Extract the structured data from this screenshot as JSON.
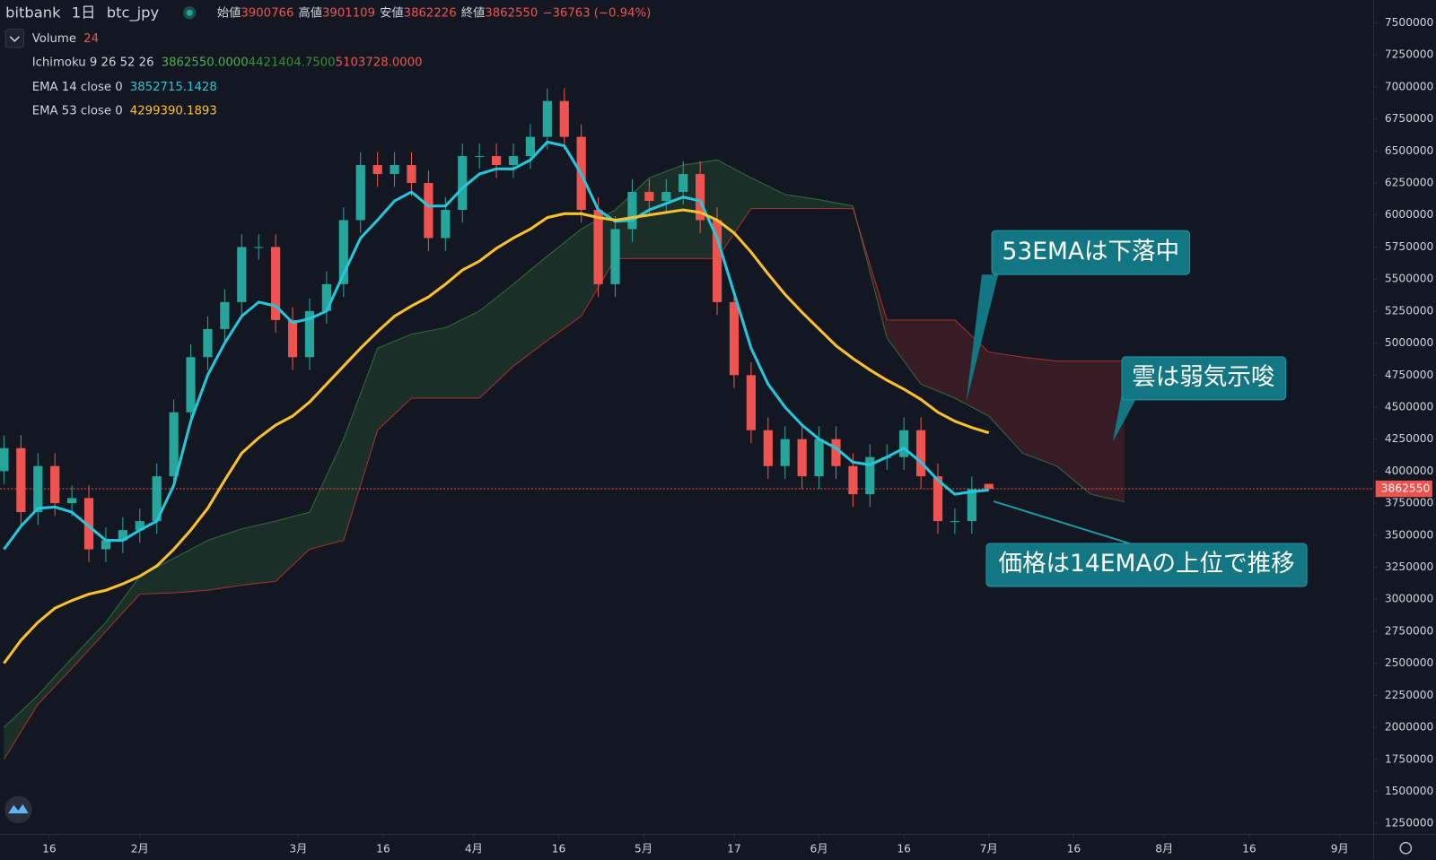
{
  "chart_data": {
    "type": "candlestick",
    "header": {
      "symbol": "bitbank",
      "interval": "1日",
      "pair": "btc_jpy",
      "open_label": "始値",
      "high_label": "高値",
      "low_label": "安値",
      "close_label": "終値",
      "change": {
        "value": -36763,
        "label": "−36763"
      },
      "change_pct": {
        "value": -0.94,
        "label": "(−0.94%)"
      }
    },
    "volume": {
      "name": "Volume",
      "length": 24
    },
    "ichimoku": {
      "name": "Ichimoku 9 26 52 26",
      "values": [
        {
          "value": 3862550,
          "label": "3862550.0000"
        },
        {
          "value": 4421404.75,
          "label": "4421404.7500"
        },
        {
          "value": 5103728,
          "label": "5103728.0000"
        }
      ],
      "colors": [
        "#4caf50",
        "#388e3c",
        "#ef5350"
      ]
    },
    "up_color": "#26a69a",
    "down_color": "#ef5350",
    "x": [
      7,
      10,
      13,
      16,
      19,
      22,
      25,
      28,
      31,
      34,
      37,
      40,
      43,
      46,
      49,
      52,
      55,
      58,
      61,
      64,
      67,
      70,
      73,
      76,
      79,
      82,
      85,
      88,
      91,
      94,
      97,
      100,
      103,
      106,
      109,
      112,
      115,
      118,
      121,
      124,
      127,
      130,
      133,
      136,
      139,
      142,
      145,
      148,
      151,
      154,
      157,
      160,
      163,
      166,
      169,
      172,
      175,
      178,
      181
    ],
    "open": [
      4000000,
      4180000,
      3680000,
      4040000,
      3750000,
      3790000,
      3390000,
      3460000,
      3540000,
      3610000,
      3960000,
      4460000,
      4890000,
      5110000,
      5320000,
      5750000,
      5750000,
      5180000,
      4890000,
      5250000,
      5460000,
      5960000,
      6390000,
      6320000,
      6390000,
      6250000,
      5820000,
      6040000,
      6460000,
      6460000,
      6390000,
      6460000,
      6610000,
      6890000,
      6610000,
      6040000,
      5460000,
      5890000,
      6180000,
      6110000,
      6180000,
      6320000,
      5960000,
      5320000,
      4750000,
      4320000,
      4040000,
      4250000,
      3960000,
      4250000,
      4040000,
      3820000,
      4110000,
      4110000,
      4320000,
      3960000,
      3610000,
      3610000,
      3900766
    ],
    "high": [
      4280000,
      4280000,
      4140000,
      4140000,
      3890000,
      3890000,
      3560000,
      3640000,
      3710000,
      4060000,
      4560000,
      4990000,
      5210000,
      5420000,
      5850000,
      5850000,
      5850000,
      5280000,
      5350000,
      5560000,
      6060000,
      6490000,
      6490000,
      6490000,
      6490000,
      6350000,
      6140000,
      6560000,
      6560000,
      6560000,
      6560000,
      6710000,
      6990000,
      6990000,
      6710000,
      6140000,
      5990000,
      6280000,
      6280000,
      6280000,
      6420000,
      6420000,
      6060000,
      5420000,
      4850000,
      4420000,
      4350000,
      4350000,
      4350000,
      4350000,
      4140000,
      4210000,
      4210000,
      4420000,
      4420000,
      4060000,
      3710000,
      3960000,
      3901109
    ],
    "low": [
      3900000,
      3580000,
      3580000,
      3650000,
      3650000,
      3290000,
      3290000,
      3360000,
      3440000,
      3510000,
      3860000,
      4360000,
      4790000,
      5010000,
      5220000,
      5650000,
      5080000,
      4790000,
      4790000,
      5150000,
      5360000,
      5860000,
      6220000,
      6220000,
      6150000,
      5720000,
      5720000,
      5940000,
      6360000,
      6290000,
      6290000,
      6360000,
      6510000,
      6510000,
      5940000,
      5360000,
      5360000,
      5790000,
      6010000,
      6010000,
      6080000,
      5860000,
      5220000,
      4650000,
      4220000,
      3940000,
      3940000,
      3860000,
      3860000,
      3940000,
      3720000,
      3720000,
      4010000,
      4010000,
      3860000,
      3510000,
      3510000,
      3510000,
      3862226
    ],
    "close": [
      4180000,
      3680000,
      4040000,
      3750000,
      3790000,
      3390000,
      3460000,
      3540000,
      3610000,
      3960000,
      4460000,
      4890000,
      5110000,
      5320000,
      5750000,
      5750000,
      5180000,
      4890000,
      5250000,
      5460000,
      5960000,
      6390000,
      6320000,
      6390000,
      6250000,
      5820000,
      6040000,
      6460000,
      6460000,
      6390000,
      6460000,
      6610000,
      6890000,
      6610000,
      6040000,
      5460000,
      5890000,
      6180000,
      6110000,
      6180000,
      6320000,
      5960000,
      5320000,
      4750000,
      4320000,
      4040000,
      4250000,
      3960000,
      4250000,
      4040000,
      3820000,
      4110000,
      4110000,
      4320000,
      3960000,
      3610000,
      3610000,
      3860000,
      3862550
    ],
    "lines": [
      {
        "name": "EMA 14 close 0",
        "color": "#26c6da",
        "values": [
          3390000,
          3570000,
          3710000,
          3720000,
          3680000,
          3570000,
          3460000,
          3460000,
          3540000,
          3610000,
          3890000,
          4390000,
          4750000,
          5000000,
          5210000,
          5320000,
          5290000,
          5160000,
          5190000,
          5250000,
          5540000,
          5820000,
          5960000,
          6110000,
          6180000,
          6070000,
          6070000,
          6210000,
          6320000,
          6360000,
          6360000,
          6430000,
          6570000,
          6540000,
          6320000,
          6040000,
          5950000,
          5960000,
          6040000,
          6090000,
          6140000,
          6110000,
          5820000,
          5390000,
          4960000,
          4680000,
          4500000,
          4360000,
          4250000,
          4180000,
          4070000,
          4050000,
          4110000,
          4180000,
          4070000,
          3930000,
          3820000,
          3840000,
          3852715.1428
        ]
      },
      {
        "name": "EMA 53 close 0",
        "color": "#fbc02d",
        "values": [
          2500000,
          2680000,
          2820000,
          2930000,
          2990000,
          3040000,
          3070000,
          3120000,
          3180000,
          3260000,
          3390000,
          3540000,
          3710000,
          3930000,
          4140000,
          4260000,
          4360000,
          4430000,
          4540000,
          4680000,
          4820000,
          4960000,
          5090000,
          5210000,
          5290000,
          5360000,
          5460000,
          5570000,
          5640000,
          5740000,
          5820000,
          5890000,
          5980000,
          6010000,
          6010000,
          5980000,
          5960000,
          5980000,
          6000000,
          6020000,
          6040000,
          6020000,
          5960000,
          5860000,
          5710000,
          5540000,
          5380000,
          5240000,
          5110000,
          4980000,
          4880000,
          4790000,
          4710000,
          4640000,
          4560000,
          4460000,
          4390000,
          4340000,
          4299390.1893
        ]
      }
    ],
    "cloud": {
      "x": [
        7,
        13,
        19,
        25,
        31,
        37,
        43,
        49,
        55,
        61,
        67,
        73,
        79,
        85,
        91,
        97,
        103,
        109,
        115,
        121,
        127,
        133,
        139,
        145,
        151,
        157,
        163,
        169,
        175,
        181,
        187,
        193,
        199,
        205
      ],
      "span_a": [
        2000000,
        2250000,
        2540000,
        2820000,
        3180000,
        3320000,
        3460000,
        3550000,
        3610000,
        3680000,
        4250000,
        4960000,
        5070000,
        5120000,
        5250000,
        5460000,
        5680000,
        5890000,
        6040000,
        6290000,
        6390000,
        6430000,
        6290000,
        6160000,
        6120000,
        6070000,
        5040000,
        4680000,
        4570000,
        4430000,
        4140000,
        4040000,
        3820000,
        3760000
      ],
      "span_b": [
        1750000,
        2180000,
        2460000,
        2750000,
        3040000,
        3050000,
        3070000,
        3110000,
        3140000,
        3390000,
        3460000,
        4320000,
        4570000,
        4570000,
        4570000,
        4820000,
        5020000,
        5210000,
        5660000,
        5660000,
        5660000,
        5660000,
        6050000,
        6050000,
        6050000,
        6050000,
        5180000,
        5180000,
        5180000,
        4930000,
        4890000,
        4860000,
        4860000,
        4860000
      ],
      "up_color": "#43a047",
      "down_color": "#e53935"
    },
    "xlim": [
      6.3,
      249
    ],
    "xticks": [
      {
        "value": 15,
        "label": "16"
      },
      {
        "value": 31,
        "label": "2月"
      },
      {
        "value": 59,
        "label": "3月"
      },
      {
        "value": 74,
        "label": "16"
      },
      {
        "value": 90,
        "label": "4月"
      },
      {
        "value": 105,
        "label": "16"
      },
      {
        "value": 120,
        "label": "5月"
      },
      {
        "value": 136,
        "label": "17"
      },
      {
        "value": 151,
        "label": "6月"
      },
      {
        "value": 166,
        "label": "16"
      },
      {
        "value": 181,
        "label": "7月"
      },
      {
        "value": 196,
        "label": "16"
      },
      {
        "value": 212,
        "label": "8月"
      },
      {
        "value": 227,
        "label": "16"
      },
      {
        "value": 243,
        "label": "9月"
      }
    ],
    "ylim": [
      1250000,
      7500000
    ],
    "yticks": [
      1250000,
      1500000,
      1750000,
      2000000,
      2250000,
      2500000,
      2750000,
      3000000,
      3250000,
      3500000,
      3750000,
      4000000,
      4250000,
      4500000,
      4750000,
      5000000,
      5250000,
      5500000,
      5750000,
      6000000,
      6250000,
      6500000,
      6750000,
      7000000,
      7250000,
      7500000
    ],
    "annotations": [
      {
        "text": "53EMAは下落中"
      },
      {
        "text": "雲は弱気示唆"
      },
      {
        "text": "価格は14EMAの上位で推移"
      }
    ]
  }
}
